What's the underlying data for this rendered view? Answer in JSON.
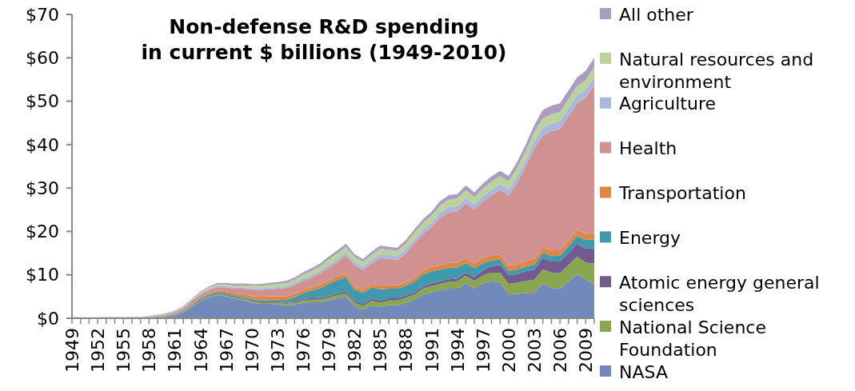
{
  "chart_data": {
    "type": "area",
    "stacked": true,
    "title": "Non-defense R&D spending\nin current $ billions (1949-2010)",
    "categories": [
      "1949",
      null,
      null,
      "1952",
      null,
      null,
      "1955",
      null,
      null,
      "1958",
      null,
      null,
      "1961",
      null,
      null,
      "1964",
      null,
      null,
      "1967",
      null,
      null,
      "1970",
      null,
      null,
      "1973",
      null,
      null,
      "1976",
      null,
      null,
      "1979",
      null,
      null,
      "1982",
      null,
      null,
      "1985",
      null,
      null,
      "1988",
      null,
      null,
      "1991",
      null,
      null,
      "1994",
      null,
      null,
      "1997",
      null,
      null,
      "2000",
      null,
      null,
      "2003",
      null,
      null,
      "2006",
      null,
      null,
      "2009",
      null
    ],
    "ylim": [
      0,
      70
    ],
    "yticks": [
      {
        "value": 0,
        "label": "$0"
      },
      {
        "value": 10,
        "label": "$10"
      },
      {
        "value": 20,
        "label": "$20"
      },
      {
        "value": 30,
        "label": "$30"
      },
      {
        "value": 40,
        "label": "$40"
      },
      {
        "value": 50,
        "label": "$50"
      },
      {
        "value": 60,
        "label": "$60"
      },
      {
        "value": 70,
        "label": "$70"
      }
    ],
    "legend": "right",
    "series": [
      {
        "name": "NASA",
        "color": "#7189bb",
        "values": [
          0.05,
          0.05,
          0.05,
          0.05,
          0.05,
          0.05,
          0.05,
          0.05,
          0.05,
          0.1,
          0.15,
          0.3,
          0.6,
          1.3,
          2.6,
          4.0,
          4.8,
          5.3,
          5.0,
          4.5,
          4.1,
          3.6,
          3.3,
          3.3,
          3.2,
          3.0,
          3.1,
          3.6,
          3.7,
          3.7,
          4.1,
          4.6,
          5.0,
          2.8,
          2.0,
          3.0,
          2.6,
          3.0,
          3.0,
          3.5,
          4.3,
          5.5,
          6.0,
          6.4,
          6.8,
          6.8,
          8.0,
          6.8,
          8.0,
          8.5,
          8.3,
          5.5,
          5.6,
          5.8,
          5.9,
          8.0,
          7.0,
          6.8,
          8.5,
          10.2,
          9.0,
          7.8
        ]
      },
      {
        "name": "National Science Foundation",
        "color": "#8aa64f",
        "values": [
          0,
          0,
          0.01,
          0.01,
          0.01,
          0.02,
          0.02,
          0.03,
          0.04,
          0.05,
          0.06,
          0.08,
          0.1,
          0.15,
          0.2,
          0.2,
          0.25,
          0.3,
          0.3,
          0.3,
          0.3,
          0.3,
          0.35,
          0.4,
          0.45,
          0.5,
          0.5,
          0.55,
          0.6,
          0.65,
          0.7,
          0.7,
          0.75,
          0.8,
          0.9,
          1.0,
          1.0,
          1.1,
          1.1,
          1.2,
          1.2,
          1.3,
          1.4,
          1.5,
          1.6,
          1.7,
          1.8,
          1.8,
          1.9,
          2.0,
          2.2,
          2.4,
          2.6,
          2.8,
          3.0,
          3.3,
          3.5,
          3.6,
          3.8,
          4.0,
          3.8,
          4.8
        ]
      },
      {
        "name": "Atomic energy general sciences",
        "color": "#735b91",
        "values": [
          0.02,
          0.02,
          0.02,
          0.02,
          0.02,
          0.02,
          0.02,
          0.02,
          0.02,
          0.03,
          0.05,
          0.08,
          0.1,
          0.12,
          0.15,
          0.2,
          0.2,
          0.2,
          0.2,
          0.2,
          0.2,
          0.2,
          0.2,
          0.2,
          0.2,
          0.25,
          0.25,
          0.3,
          0.3,
          0.3,
          0.3,
          0.35,
          0.4,
          0.4,
          0.45,
          0.5,
          0.5,
          0.5,
          0.5,
          0.5,
          0.5,
          0.5,
          0.6,
          0.6,
          0.6,
          0.6,
          0.7,
          0.8,
          1.2,
          1.5,
          1.8,
          2.0,
          2.0,
          2.2,
          2.3,
          2.5,
          2.6,
          2.7,
          2.8,
          3.0,
          3.2,
          3.5
        ]
      },
      {
        "name": "Energy",
        "color": "#4199ae",
        "values": [
          0.01,
          0.01,
          0.01,
          0.01,
          0.01,
          0.01,
          0.01,
          0.01,
          0.01,
          0.05,
          0.08,
          0.1,
          0.12,
          0.15,
          0.2,
          0.2,
          0.25,
          0.3,
          0.3,
          0.3,
          0.3,
          0.3,
          0.3,
          0.3,
          0.35,
          0.5,
          1.0,
          1.3,
          1.8,
          2.3,
          2.8,
          3.2,
          3.3,
          2.6,
          2.5,
          2.6,
          2.6,
          2.2,
          2.2,
          2.3,
          2.5,
          2.8,
          2.8,
          2.7,
          2.6,
          2.6,
          2.2,
          2.1,
          1.6,
          1.3,
          1.2,
          1.0,
          1.0,
          1.1,
          1.2,
          1.3,
          1.2,
          1.3,
          1.5,
          1.8,
          2.0,
          2.1
        ]
      },
      {
        "name": "Transportation",
        "color": "#dc8743",
        "values": [
          0.01,
          0.01,
          0.01,
          0.01,
          0.01,
          0.01,
          0.01,
          0.01,
          0.01,
          0.02,
          0.03,
          0.05,
          0.08,
          0.1,
          0.15,
          0.2,
          0.25,
          0.3,
          0.4,
          0.5,
          0.6,
          0.7,
          0.8,
          0.8,
          0.8,
          0.8,
          0.8,
          0.8,
          0.8,
          0.8,
          0.8,
          0.8,
          0.8,
          0.7,
          0.7,
          0.7,
          0.8,
          0.8,
          0.8,
          0.8,
          0.9,
          0.9,
          1.0,
          1.0,
          1.1,
          1.1,
          1.1,
          1.1,
          1.2,
          1.2,
          1.2,
          1.2,
          1.2,
          1.3,
          1.3,
          1.3,
          1.3,
          1.3,
          1.3,
          1.4,
          1.4,
          1.4
        ]
      },
      {
        "name": "Health",
        "color": "#d09291",
        "values": [
          0.03,
          0.03,
          0.04,
          0.04,
          0.05,
          0.06,
          0.07,
          0.08,
          0.1,
          0.1,
          0.2,
          0.3,
          0.45,
          0.55,
          0.7,
          0.7,
          0.8,
          0.8,
          0.9,
          1.0,
          1.3,
          1.5,
          1.6,
          1.7,
          1.8,
          1.9,
          2.0,
          2.1,
          2.2,
          2.6,
          3.0,
          3.3,
          4.2,
          5.0,
          4.6,
          4.8,
          6.4,
          6.1,
          5.8,
          6.7,
          7.9,
          8.4,
          9.2,
          11,
          11.7,
          11.8,
          12.7,
          12.4,
          13,
          13.9,
          14.8,
          16.2,
          18.8,
          21.8,
          25.5,
          25.7,
          27.5,
          27.9,
          28.7,
          29.1,
          31.4,
          34.2
        ]
      },
      {
        "name": "Agriculture",
        "color": "#a9b8dc",
        "values": [
          0.05,
          0.05,
          0.05,
          0.05,
          0.05,
          0.05,
          0.05,
          0.05,
          0.05,
          0.1,
          0.1,
          0.12,
          0.14,
          0.16,
          0.18,
          0.2,
          0.22,
          0.25,
          0.27,
          0.3,
          0.3,
          0.32,
          0.34,
          0.36,
          0.4,
          0.42,
          0.45,
          0.5,
          0.55,
          0.6,
          0.65,
          0.7,
          0.75,
          0.75,
          0.8,
          0.85,
          0.9,
          0.9,
          0.9,
          0.95,
          1.0,
          1.0,
          1.05,
          1.1,
          1.15,
          1.2,
          1.2,
          1.2,
          1.25,
          1.3,
          1.35,
          1.4,
          1.5,
          1.6,
          1.7,
          1.8,
          1.8,
          1.8,
          1.8,
          1.9,
          1.9,
          1.9
        ]
      },
      {
        "name": "Natural resources and environment",
        "color": "#b9d39a",
        "values": [
          0.03,
          0.03,
          0.03,
          0.03,
          0.03,
          0.03,
          0.03,
          0.03,
          0.03,
          0.05,
          0.07,
          0.1,
          0.12,
          0.15,
          0.2,
          0.25,
          0.3,
          0.35,
          0.4,
          0.45,
          0.5,
          0.55,
          0.6,
          0.65,
          0.7,
          0.75,
          0.8,
          0.9,
          1.0,
          1.1,
          1.2,
          1.3,
          1.3,
          1.1,
          1.1,
          1.2,
          1.2,
          1.2,
          1.2,
          1.3,
          1.4,
          1.5,
          1.6,
          1.7,
          1.8,
          1.8,
          1.8,
          1.7,
          1.8,
          1.8,
          1.9,
          1.9,
          2.0,
          2.0,
          2.1,
          2.1,
          2.1,
          2.1,
          2.1,
          2.1,
          2.2,
          2.2
        ]
      },
      {
        "name": "All other",
        "color": "#ab9dc2",
        "values": [
          0.03,
          0.03,
          0.03,
          0.03,
          0.03,
          0.03,
          0.03,
          0.03,
          0.03,
          0.05,
          0.07,
          0.08,
          0.1,
          0.12,
          0.15,
          0.2,
          0.25,
          0.3,
          0.4,
          0.4,
          0.4,
          0.4,
          0.4,
          0.45,
          0.45,
          0.5,
          0.5,
          0.55,
          0.6,
          0.6,
          0.7,
          0.7,
          0.7,
          0.6,
          0.6,
          0.7,
          0.7,
          0.7,
          0.7,
          0.8,
          0.8,
          0.9,
          0.9,
          1.0,
          1.0,
          1.0,
          1.1,
          1.1,
          1.1,
          1.2,
          1.2,
          1.2,
          1.3,
          1.4,
          1.5,
          2.0,
          2.0,
          2.0,
          2.0,
          2.0,
          2.1,
          2.1
        ]
      }
    ]
  }
}
